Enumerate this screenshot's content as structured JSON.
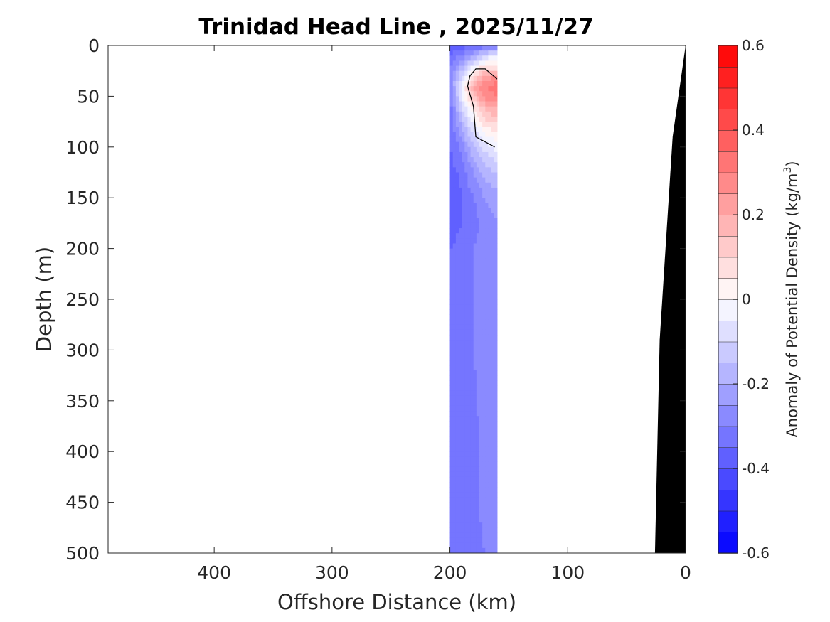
{
  "chart_data": {
    "type": "heatmap",
    "title": "Trinidad Head Line , 2025/11/27",
    "xlabel": "Offshore Distance (km)",
    "ylabel": "Depth (m)",
    "xlim": [
      490,
      0
    ],
    "ylim": [
      0,
      500
    ],
    "x_reversed": true,
    "y_reversed": true,
    "xticks": [
      400,
      300,
      200,
      100,
      0
    ],
    "yticks": [
      0,
      50,
      100,
      150,
      200,
      250,
      300,
      350,
      400,
      450,
      500
    ],
    "colorbar": {
      "label_main": "Anomaly of Potential Density (kg/m",
      "label_sup": "3",
      "label_close": ")",
      "range": [
        -0.6,
        0.6
      ],
      "step": 0.05,
      "ticks": [
        0.6,
        0.4,
        0.2,
        0,
        -0.2,
        -0.4,
        -0.6
      ],
      "tick_labels": [
        "0.6",
        "0.4",
        "0.2",
        "0",
        "-0.2",
        "-0.4",
        "-0.6"
      ]
    },
    "colors": {
      "positive": "#ff0000",
      "negative": "#0000ff",
      "zero": "#ffffff",
      "bathymetry": "#000000",
      "contour": "#000000"
    },
    "data_extent_km": [
      200,
      160
    ],
    "data_columns_x": [
      200,
      190,
      180,
      170,
      160
    ],
    "data_rows_depth": [
      0,
      10,
      20,
      30,
      40,
      50,
      60,
      80,
      100,
      125,
      150,
      175,
      200,
      250,
      300,
      350,
      400,
      450,
      500
    ],
    "values": [
      [
        -0.4,
        -0.38,
        -0.36,
        -0.35,
        -0.33
      ],
      [
        -0.35,
        -0.3,
        -0.22,
        -0.1,
        -0.05
      ],
      [
        -0.3,
        -0.2,
        -0.05,
        0.05,
        0.05
      ],
      [
        -0.28,
        -0.1,
        0.1,
        0.2,
        0.25
      ],
      [
        -0.3,
        -0.02,
        0.2,
        0.3,
        0.33
      ],
      [
        -0.32,
        -0.05,
        0.15,
        0.27,
        0.3
      ],
      [
        -0.33,
        -0.1,
        0.05,
        0.18,
        0.22
      ],
      [
        -0.35,
        -0.2,
        -0.05,
        0.05,
        0.08
      ],
      [
        -0.35,
        -0.28,
        -0.15,
        -0.08,
        -0.02
      ],
      [
        -0.38,
        -0.33,
        -0.25,
        -0.18,
        -0.15
      ],
      [
        -0.4,
        -0.35,
        -0.3,
        -0.25,
        -0.22
      ],
      [
        -0.38,
        -0.35,
        -0.32,
        -0.28,
        -0.25
      ],
      [
        -0.35,
        -0.33,
        -0.3,
        -0.28,
        -0.26
      ],
      [
        -0.35,
        -0.33,
        -0.3,
        -0.27,
        -0.25
      ],
      [
        -0.33,
        -0.32,
        -0.3,
        -0.27,
        -0.25
      ],
      [
        -0.33,
        -0.32,
        -0.31,
        -0.28,
        -0.26
      ],
      [
        -0.33,
        -0.32,
        -0.31,
        -0.29,
        -0.26
      ],
      [
        -0.33,
        -0.32,
        -0.31,
        -0.29,
        -0.27
      ],
      [
        -0.33,
        -0.32,
        -0.31,
        -0.3,
        -0.28
      ]
    ],
    "zero_contour": [
      [
        162,
        100
      ],
      [
        178,
        90
      ],
      [
        180,
        60
      ],
      [
        185,
        40
      ],
      [
        183,
        30
      ],
      [
        178,
        23
      ],
      [
        170,
        23
      ],
      [
        160,
        33
      ]
    ],
    "bathymetry": [
      [
        0,
        0
      ],
      [
        11,
        90
      ],
      [
        22,
        290
      ],
      [
        26,
        500
      ],
      [
        0,
        500
      ]
    ]
  }
}
